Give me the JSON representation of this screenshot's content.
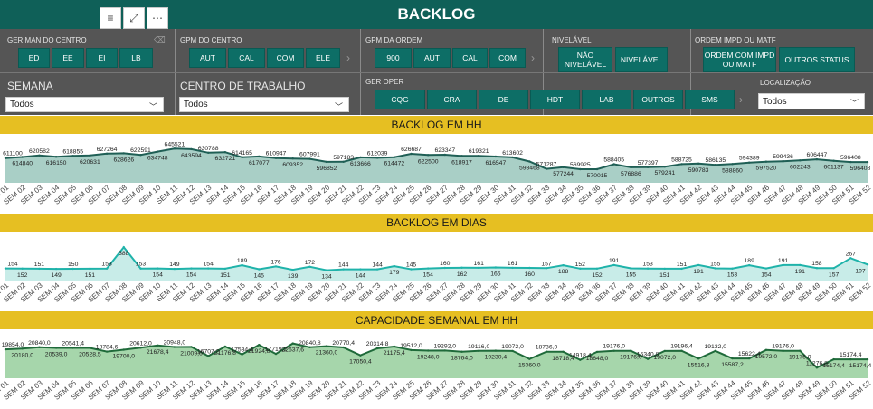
{
  "page": {
    "title": "BACKLOG"
  },
  "toolbar": {
    "filter_icon": "filter-icon",
    "focus_icon": "focus-mode-icon",
    "more_icon": "more-options-icon",
    "filter_glyph": "≡",
    "focus_glyph": "⤢",
    "more_glyph": "⋯"
  },
  "slicers": {
    "ger_man": {
      "title": "GER MAN DO CENTRO",
      "options": [
        "ED",
        "EE",
        "EI",
        "LB"
      ]
    },
    "gpm_centro": {
      "title": "GPM DO CENTRO",
      "options": [
        "AUT",
        "CAL",
        "COM",
        "ELE"
      ]
    },
    "gpm_ordem": {
      "title": "GPM DA ORDEM",
      "options": [
        "900",
        "AUT",
        "CAL",
        "COM"
      ]
    },
    "nivelavel": {
      "title": "NIVELÁVEL",
      "options": [
        "NÃO NIVELÁVEL",
        "NIVELÁVEL"
      ]
    },
    "ordem_impd": {
      "title": "ORDEM IMPD OU MATF",
      "options": [
        "ORDEM COM IMPD OU MATF",
        "OUTROS STATUS"
      ]
    },
    "semana": {
      "title": "SEMANA",
      "value": "Todos"
    },
    "centro_trabalho": {
      "title": "CENTRO DE TRABALHO",
      "value": "Todos"
    },
    "ger_oper": {
      "title": "GER OPER",
      "options": [
        "CQG",
        "CRA",
        "DE",
        "HDT",
        "LAB",
        "OUTROS",
        "SMS"
      ]
    },
    "localizacao": {
      "title": "LOCALIZAÇÃO",
      "value": "Todos"
    }
  },
  "sections": {
    "hh": "BACKLOG EM HH",
    "dias": "BACKLOG EM DIAS",
    "cap": "CAPACIDADE SEMANAL EM HH"
  },
  "chart_data": [
    {
      "type": "area",
      "title": "BACKLOG EM HH",
      "categories": [
        "SEM 01",
        "SEM 02",
        "SEM 03",
        "SEM 04",
        "SEM 05",
        "SEM 06",
        "SEM 07",
        "SEM 08",
        "SEM 09",
        "SEM 10",
        "SEM 11",
        "SEM 12",
        "SEM 13",
        "SEM 14",
        "SEM 15",
        "SEM 16",
        "SEM 17",
        "SEM 18",
        "SEM 19",
        "SEM 20",
        "SEM 21",
        "SEM 22",
        "SEM 23",
        "SEM 24",
        "SEM 25",
        "SEM 26",
        "SEM 27",
        "SEM 28",
        "SEM 29",
        "SEM 30",
        "SEM 31",
        "SEM 32",
        "SEM 33",
        "SEM 34",
        "SEM 35",
        "SEM 36",
        "SEM 37",
        "SEM 38",
        "SEM 39",
        "SEM 40",
        "SEM 41",
        "SEM 42",
        "SEM 43",
        "SEM 44",
        "SEM 45",
        "SEM 46",
        "SEM 47",
        "SEM 48",
        "SEM 49",
        "SEM 50",
        "SEM 51",
        "SEM 52"
      ],
      "series": [
        {
          "values": [
            611100,
            614840,
            620582,
            616150,
            618855,
            620631,
            627264,
            628626,
            622591,
            634748,
            645521,
            643594,
            630788,
            632721,
            614165,
            617077,
            610947,
            609352,
            607991,
            596852,
            597183,
            613666,
            612039,
            614472,
            626687,
            622500,
            623347,
            618917,
            619321,
            616547,
            613602,
            598468,
            571287,
            577244,
            569925,
            570015,
            588405,
            576886,
            577397,
            579241,
            588725,
            590783,
            586135,
            588860,
            594389,
            597520,
            599436,
            602243,
            606447,
            601137,
            596408,
            596408
          ]
        }
      ],
      "ylim": [
        540000,
        660000
      ]
    },
    {
      "type": "area",
      "title": "BACKLOG EM DIAS",
      "categories": [
        "SEM 01",
        "SEM 02",
        "SEM 03",
        "SEM 04",
        "SEM 05",
        "SEM 06",
        "SEM 07",
        "SEM 08",
        "SEM 09",
        "SEM 10",
        "SEM 11",
        "SEM 12",
        "SEM 13",
        "SEM 14",
        "SEM 15",
        "SEM 16",
        "SEM 17",
        "SEM 18",
        "SEM 19",
        "SEM 20",
        "SEM 21",
        "SEM 22",
        "SEM 23",
        "SEM 24",
        "SEM 25",
        "SEM 26",
        "SEM 27",
        "SEM 28",
        "SEM 29",
        "SEM 30",
        "SEM 31",
        "SEM 32",
        "SEM 33",
        "SEM 34",
        "SEM 35",
        "SEM 36",
        "SEM 37",
        "SEM 38",
        "SEM 39",
        "SEM 40",
        "SEM 41",
        "SEM 42",
        "SEM 43",
        "SEM 44",
        "SEM 45",
        "SEM 46",
        "SEM 47",
        "SEM 48",
        "SEM 49",
        "SEM 50",
        "SEM 51",
        "SEM 52"
      ],
      "series": [
        {
          "values": [
            154,
            152,
            151,
            149,
            150,
            151,
            153,
            388,
            153,
            154,
            149,
            154,
            154,
            151,
            189,
            145,
            176,
            139,
            172,
            134,
            144,
            144,
            144,
            179,
            145,
            154,
            160,
            162,
            161,
            165,
            161,
            160,
            157,
            188,
            152,
            152,
            191,
            155,
            153,
            151,
            151,
            191,
            155,
            153,
            189,
            154,
            191,
            191,
            158,
            157,
            267,
            197
          ]
        }
      ],
      "ylim": [
        100,
        420
      ]
    },
    {
      "type": "area",
      "title": "CAPACIDADE SEMANAL EM HH",
      "categories": [
        "SEM 01",
        "SEM 02",
        "SEM 03",
        "SEM 04",
        "SEM 05",
        "SEM 06",
        "SEM 07",
        "SEM 08",
        "SEM 09",
        "SEM 10",
        "SEM 11",
        "SEM 12",
        "SEM 13",
        "SEM 14",
        "SEM 15",
        "SEM 16",
        "SEM 17",
        "SEM 18",
        "SEM 19",
        "SEM 20",
        "SEM 21",
        "SEM 22",
        "SEM 23",
        "SEM 24",
        "SEM 25",
        "SEM 26",
        "SEM 27",
        "SEM 28",
        "SEM 29",
        "SEM 30",
        "SEM 31",
        "SEM 32",
        "SEM 33",
        "SEM 34",
        "SEM 35",
        "SEM 36",
        "SEM 37",
        "SEM 38",
        "SEM 39",
        "SEM 40",
        "SEM 41",
        "SEM 42",
        "SEM 43",
        "SEM 44",
        "SEM 45",
        "SEM 46",
        "SEM 47",
        "SEM 48",
        "SEM 49",
        "SEM 50",
        "SEM 51",
        "SEM 52"
      ],
      "series": [
        {
          "values": [
            19854.0,
            20180.0,
            20840.0,
            20539.0,
            20541.4,
            20528.5,
            18784.6,
            19700.0,
            20612.0,
            21678.4,
            20948.0,
            21009.6,
            16707.2,
            21176.8,
            17534.4,
            21924.8,
            17719.2,
            22637.6,
            20840.8,
            21360.0,
            20770.4,
            17050.4,
            20314.8,
            21175.4,
            19512.0,
            19248.0,
            19292.0,
            18764.0,
            19116.0,
            19230.4,
            19072.0,
            15360.0,
            18736.0,
            18718.4,
            14918.4,
            18648.0,
            19176.0,
            19176.0,
            15340.8,
            19072.0,
            19196.4,
            15516.8,
            19132.0,
            15587.2,
            15622.4,
            19572.0,
            19176.0,
            19176.0,
            11276.8,
            15174.4,
            15174.4,
            15174.4
          ]
        }
      ],
      "ylim": [
        8000,
        25000
      ]
    }
  ]
}
